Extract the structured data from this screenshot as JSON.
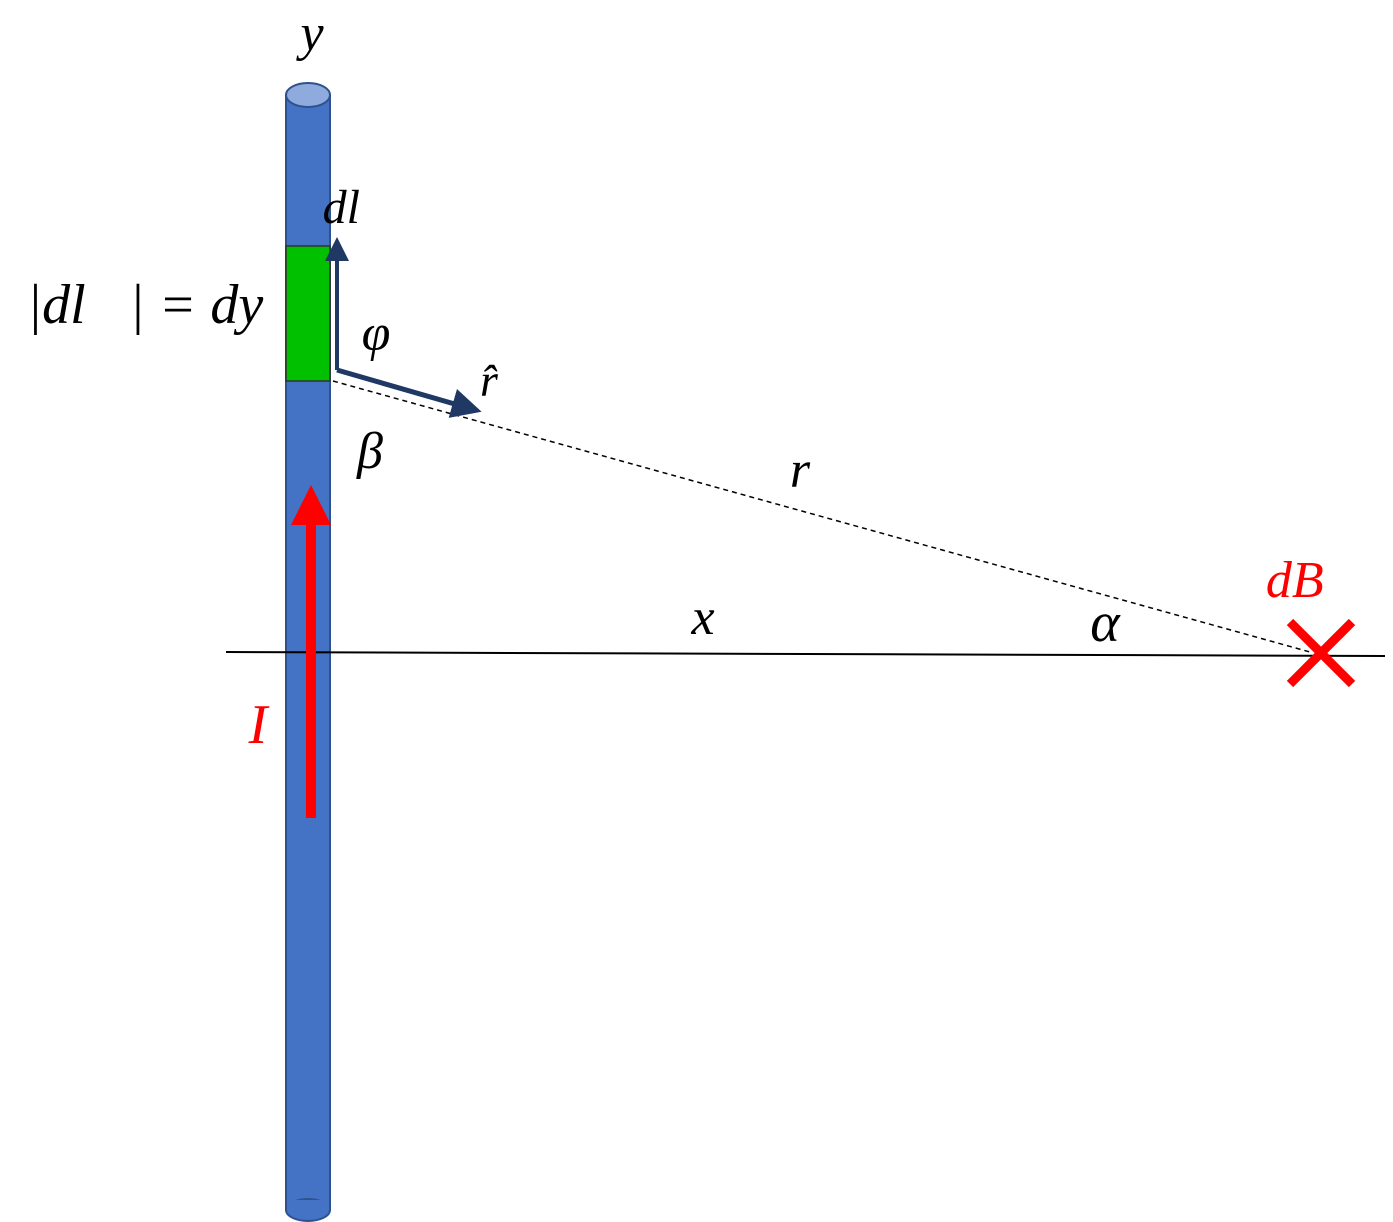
{
  "labels": {
    "y_axis": "y",
    "dl_vector": "dl⃗",
    "dl_magnitude": "|dl⃗| = dy",
    "phi": "φ",
    "r_hat": "r̂",
    "beta": "β",
    "r": "r",
    "x": "x",
    "alpha": "α",
    "dB": "dB⃗",
    "current": "I"
  }
}
